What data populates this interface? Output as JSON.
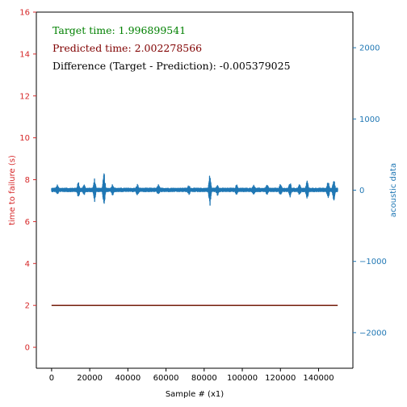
{
  "chart_data": {
    "type": "line",
    "xlabel": "Sample # (x1)",
    "ylabel_left": "time to failure (s)",
    "ylabel_right": "acoustic data",
    "x_range": [
      -8000,
      158000
    ],
    "ylim_left": [
      -1,
      16
    ],
    "ylim_right": [
      -2500,
      2500
    ],
    "x_ticks": [
      0,
      20000,
      40000,
      60000,
      80000,
      100000,
      120000,
      140000
    ],
    "x_tick_labels": [
      "0",
      "20000",
      "40000",
      "60000",
      "80000",
      "100000",
      "120000",
      "140000"
    ],
    "y_left_ticks": [
      0,
      2,
      4,
      6,
      8,
      10,
      12,
      14,
      16
    ],
    "y_left_tick_labels": [
      "0",
      "2",
      "4",
      "6",
      "8",
      "10",
      "12",
      "14",
      "16"
    ],
    "y_right_ticks": [
      -2000,
      -1000,
      0,
      1000,
      2000
    ],
    "y_right_tick_labels": [
      "−2000",
      "−1000",
      "0",
      "1000",
      "2000"
    ],
    "grid": false,
    "colors": {
      "left_axis": "#d62728",
      "right_axis": "#1f77b4",
      "target": "#008000",
      "prediction": "#800000",
      "acoustic": "#1f77b4",
      "difference": "#000000"
    },
    "series": [
      {
        "axis": "left",
        "color": "#008000",
        "x": [
          0,
          150000
        ],
        "values": [
          1.996899541,
          1.996899541
        ]
      },
      {
        "axis": "left",
        "color": "#800000",
        "x": [
          0,
          150000
        ],
        "values": [
          2.002278566,
          2.002278566
        ]
      },
      {
        "axis": "right",
        "color": "#1f77b4",
        "x_range": [
          0,
          150000
        ],
        "baseline": 4,
        "noise_amplitude": 25,
        "bursts": [
          {
            "x": 3000,
            "amplitude": 45
          },
          {
            "x": 14000,
            "amplitude": 95
          },
          {
            "x": 17000,
            "amplitude": 55
          },
          {
            "x": 22500,
            "amplitude": 160
          },
          {
            "x": 27500,
            "amplitude": 240
          },
          {
            "x": 32000,
            "amplitude": 65
          },
          {
            "x": 45000,
            "amplitude": 60
          },
          {
            "x": 56000,
            "amplitude": 55
          },
          {
            "x": 72000,
            "amplitude": 50
          },
          {
            "x": 83000,
            "amplitude": 215
          },
          {
            "x": 87000,
            "amplitude": 60
          },
          {
            "x": 97000,
            "amplitude": 55
          },
          {
            "x": 106000,
            "amplitude": 60
          },
          {
            "x": 113000,
            "amplitude": 55
          },
          {
            "x": 120000,
            "amplitude": 60
          },
          {
            "x": 125000,
            "amplitude": 95
          },
          {
            "x": 130000,
            "amplitude": 60
          },
          {
            "x": 134000,
            "amplitude": 120
          },
          {
            "x": 145000,
            "amplitude": 110
          },
          {
            "x": 148000,
            "amplitude": 175
          }
        ]
      }
    ],
    "annotations": [
      {
        "text": "Target time: 1.996899541",
        "color": "#008000"
      },
      {
        "text": "Predicted time: 2.002278566",
        "color": "#800000"
      },
      {
        "text": "Difference (Target - Prediction): -0.005379025",
        "color": "#000000"
      }
    ]
  }
}
